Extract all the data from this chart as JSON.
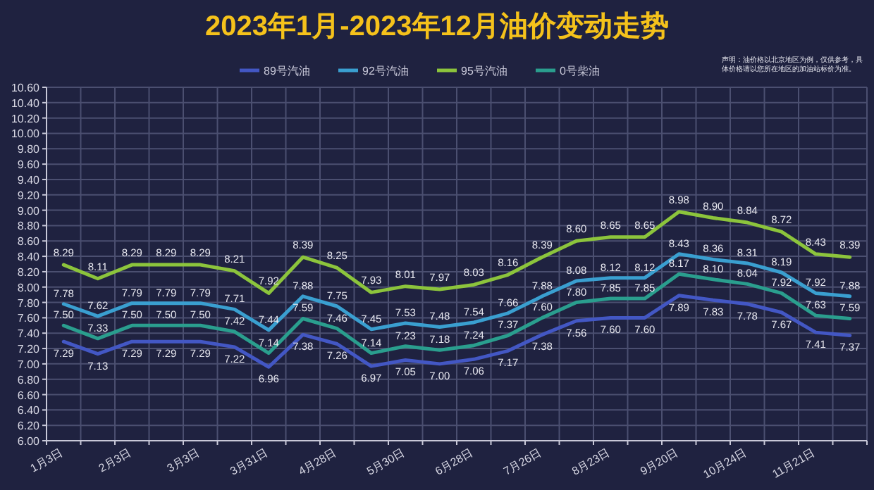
{
  "chart_data": {
    "type": "line",
    "title": "2023年1月-2023年12月油价变动走势",
    "annotations": [
      "声明：油价格以北京地区为例，仅供参考，具体价格请以您所在地区的加油站标价为准。"
    ],
    "categories": [
      "1月3日",
      null,
      "2月3日",
      null,
      "3月3日",
      null,
      "3月31日",
      null,
      "4月28日",
      null,
      "5月30日",
      null,
      "6月28日",
      null,
      "7月26日",
      null,
      "8月23日",
      null,
      "9月20日",
      null,
      "10月24日",
      null,
      "11月21日",
      null
    ],
    "series": [
      {
        "name": "89号汽油",
        "color": "#4357c4",
        "values": [
          7.29,
          7.13,
          7.29,
          7.29,
          7.29,
          7.22,
          6.96,
          7.38,
          7.26,
          6.97,
          7.05,
          7.0,
          7.06,
          7.17,
          7.38,
          7.56,
          7.6,
          7.6,
          7.89,
          7.83,
          7.78,
          7.67,
          7.41,
          7.37
        ],
        "value_labels": [
          "7.29",
          "7.13",
          "7.29",
          "7.29",
          "7.29",
          "7.22",
          "6.96",
          "7.38",
          "7.26",
          "6.97",
          "7.05",
          "7.00",
          "7.06",
          "7.17",
          "7.38",
          "7.56",
          "7.60",
          "7.60",
          "7.89",
          "7.83",
          "7.78",
          "7.67",
          "7.41",
          "7.37"
        ]
      },
      {
        "name": "92号汽油",
        "color": "#3a9fd0",
        "values": [
          7.78,
          7.62,
          7.79,
          7.79,
          7.79,
          7.71,
          7.44,
          7.88,
          7.75,
          7.45,
          7.53,
          7.48,
          7.54,
          7.66,
          7.88,
          8.08,
          8.12,
          8.12,
          8.43,
          8.36,
          8.31,
          8.19,
          7.92,
          7.88
        ],
        "value_labels": [
          "7.78",
          "7.62",
          "7.79",
          "7.79",
          "7.79",
          "7.71",
          "7.44",
          "7.88",
          "7.75",
          "7.45",
          "7.53",
          "7.48",
          "7.54",
          "7.66",
          "7.88",
          "8.08",
          "8.12",
          "8.12",
          "8.43",
          "8.36",
          "8.31",
          "8.19",
          "7.92",
          "7.88"
        ]
      },
      {
        "name": "95号汽油",
        "color": "#8cc43c",
        "values": [
          8.29,
          8.11,
          8.29,
          8.29,
          8.29,
          8.21,
          7.92,
          8.39,
          8.25,
          7.93,
          8.01,
          7.97,
          8.03,
          8.16,
          8.39,
          8.6,
          8.65,
          8.65,
          8.98,
          8.9,
          8.84,
          8.72,
          8.43,
          8.39
        ],
        "value_labels": [
          "8.29",
          "8.11",
          "8.29",
          "8.29",
          "8.29",
          "8.21",
          "7.92",
          "8.39",
          "8.25",
          "7.93",
          "8.01",
          "7.97",
          "8.03",
          "8.16",
          "8.39",
          "8.60",
          "8.65",
          "8.65",
          "8.98",
          "8.90",
          "8.84",
          "8.72",
          "8.43",
          "8.39"
        ]
      },
      {
        "name": "0号柴油",
        "color": "#2a9e8e",
        "values": [
          7.5,
          7.33,
          7.5,
          7.5,
          7.5,
          7.42,
          7.14,
          7.59,
          7.46,
          7.14,
          7.23,
          7.18,
          7.24,
          7.37,
          7.6,
          7.8,
          7.85,
          7.85,
          8.17,
          8.1,
          8.04,
          7.92,
          7.63,
          7.59
        ],
        "value_labels": [
          "7.50",
          "7.33",
          "7.50",
          "7.50",
          "7.50",
          "7.42",
          "7.14",
          "7.59",
          "7.46",
          "7.14",
          "7.23",
          "7.18",
          "7.24",
          "7.37",
          "7.60",
          "7.80",
          "7.85",
          "7.85",
          "8.17",
          "8.10",
          "8.04",
          "7.92",
          "7.63",
          "7.59"
        ]
      }
    ],
    "ylim": [
      6,
      10.6
    ],
    "yticks": [
      {
        "value": 6,
        "label": "6.00"
      },
      {
        "value": 6.2,
        "label": "6.20"
      },
      {
        "value": 6.4,
        "label": "6.40"
      },
      {
        "value": 6.6,
        "label": "6.60"
      },
      {
        "value": 6.8,
        "label": "6.80"
      },
      {
        "value": 7,
        "label": "7.00"
      },
      {
        "value": 7.2,
        "label": "7.20"
      },
      {
        "value": 7.4,
        "label": "7.40"
      },
      {
        "value": 7.6,
        "label": "7.60"
      },
      {
        "value": 7.8,
        "label": "7.80"
      },
      {
        "value": 8,
        "label": "8.00"
      },
      {
        "value": 8.2,
        "label": "8.20"
      },
      {
        "value": 8.4,
        "label": "8.40"
      },
      {
        "value": 8.6,
        "label": "8.60"
      },
      {
        "value": 8.8,
        "label": "8.80"
      },
      {
        "value": 9,
        "label": "9.00"
      },
      {
        "value": 9.2,
        "label": "9.20"
      },
      {
        "value": 9.4,
        "label": "9.40"
      },
      {
        "value": 9.6,
        "label": "9.60"
      },
      {
        "value": 9.8,
        "label": "9.80"
      },
      {
        "value": 10,
        "label": "10.00"
      },
      {
        "value": 10.2,
        "label": "10.20"
      },
      {
        "value": 10.4,
        "label": "10.40"
      },
      {
        "value": 10.6,
        "label": "10.60"
      }
    ],
    "grid": true,
    "legend": "top",
    "marker": "none",
    "line_style": "solid"
  }
}
